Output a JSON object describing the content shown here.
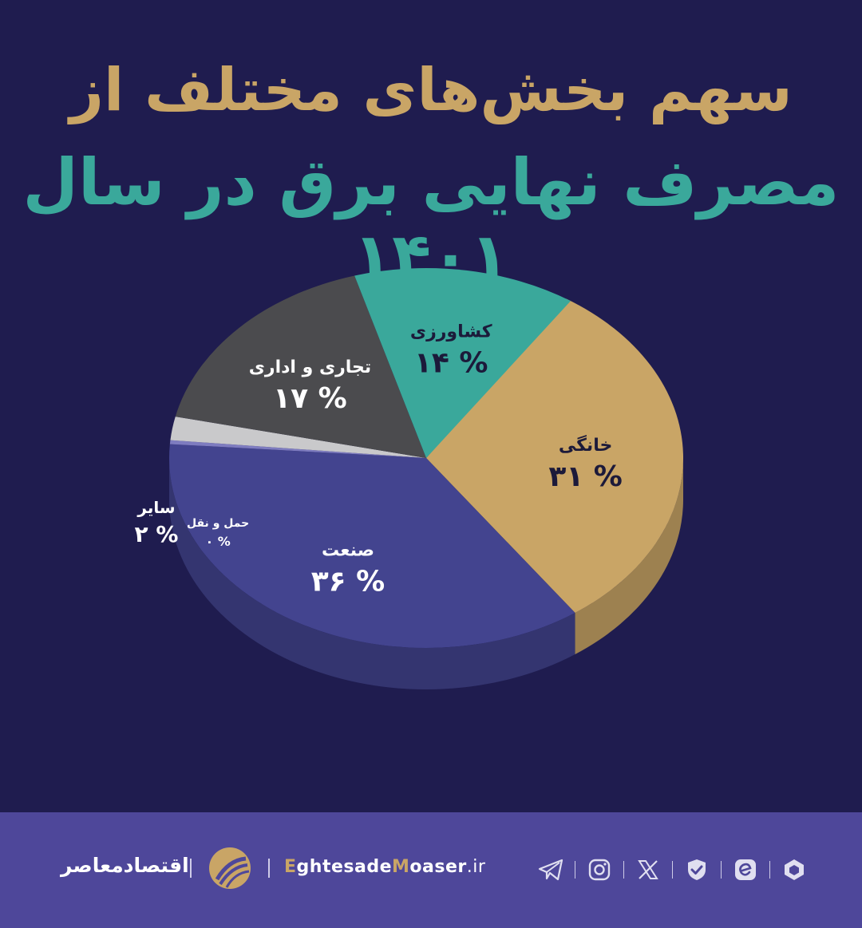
{
  "header": {
    "title_line1": "سهم بخش‌های مختلف از",
    "title_line2": "مصرف نهایی برق در سال ۱۴۰۱"
  },
  "chart_data": {
    "type": "pie",
    "title": "سهم بخش‌های مختلف از مصرف نهایی برق در سال ۱۴۰۱",
    "slices": [
      {
        "label": "خانگی",
        "value": 31,
        "value_text": "۳۱ %",
        "color": "#c9a566"
      },
      {
        "label": "صنعت",
        "value": 36,
        "value_text": "۳۶ %",
        "color": "#43448f"
      },
      {
        "label": "حمل و نقل",
        "value": 0,
        "value_text": "۰ %",
        "color": "#7e7cc0"
      },
      {
        "label": "سایر",
        "value": 2,
        "value_text": "۲ %",
        "color": "#c9c9cb"
      },
      {
        "label": "تجاری و اداری",
        "value": 17,
        "value_text": "۱۷ %",
        "color": "#4b4b4e"
      },
      {
        "label": "کشاورزی",
        "value": 14,
        "value_text": "۱۴ %",
        "color": "#3aa89b"
      }
    ]
  },
  "footer": {
    "brand_name": "اقتصادمعاصر",
    "url_part1": "E",
    "url_part2": "ghtesade",
    "url_part3": "M",
    "url_part4": "oaser",
    "url_part5": ".ir",
    "social_icons": [
      "telegram-icon",
      "instagram-icon",
      "x-icon",
      "verified-icon",
      "eitaa-icon",
      "rubika-icon"
    ]
  }
}
